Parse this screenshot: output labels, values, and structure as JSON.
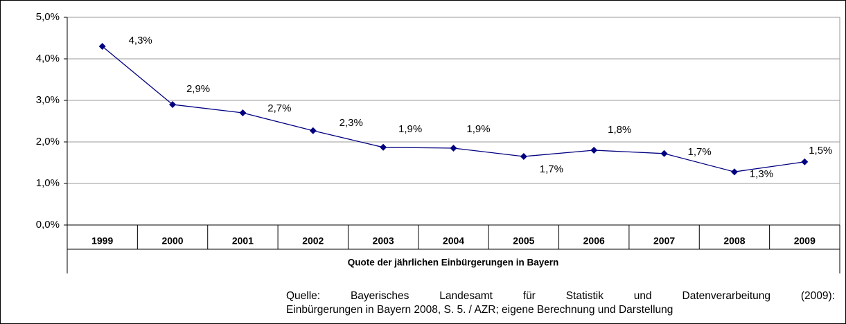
{
  "chart_data": {
    "type": "line",
    "x_label": "Quote der jährlichen Einbürgerungen in Bayern",
    "source": [
      "Quelle: Bayerisches Landesamt für Statistik und Datenverarbeitung (2009):",
      "Einbürgerungen in Bayern 2008, S. 5. / AZR; eigene Berechnung und Darstellung"
    ],
    "categories": [
      "1999",
      "2000",
      "2001",
      "2002",
      "2003",
      "2004",
      "2005",
      "2006",
      "2007",
      "2008",
      "2009"
    ],
    "series": [
      {
        "color": "#000080",
        "values": [
          4.3,
          2.9,
          2.7,
          2.27,
          1.87,
          1.85,
          1.65,
          1.8,
          1.72,
          1.28,
          1.52
        ],
        "value_labels": [
          "4,3%",
          "2,9%",
          "2,7%",
          "2,3%",
          "1,9%",
          "1,9%",
          "1,7%",
          "1,8%",
          "1,7%",
          "1,3%",
          "1,5%"
        ]
      }
    ],
    "ylim": [
      0,
      5
    ],
    "yticks": [
      {
        "value": 0,
        "label": "0,0%"
      },
      {
        "value": 1,
        "label": "1,0%"
      },
      {
        "value": 2,
        "label": "2,0%"
      },
      {
        "value": 3,
        "label": "3,0%"
      },
      {
        "value": 4,
        "label": "4,0%"
      },
      {
        "value": 5,
        "label": "5,0%"
      }
    ],
    "grid": true
  }
}
